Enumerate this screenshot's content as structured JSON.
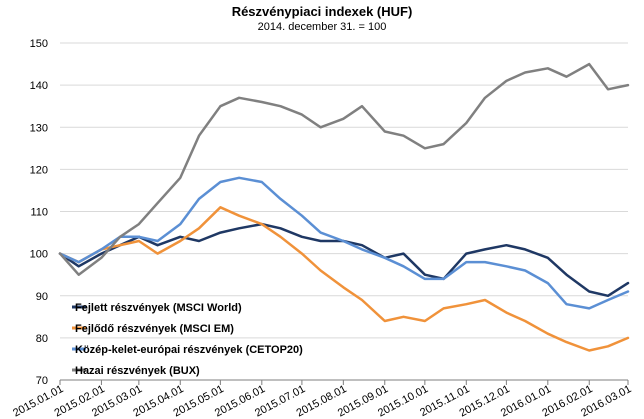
{
  "chart_data": {
    "type": "line",
    "title": "Részvénypiaci indexek (HUF)",
    "subtitle": "2014. december 31. = 100",
    "xlabel": "",
    "ylabel": "",
    "ylim": [
      70,
      150
    ],
    "yticks": [
      70,
      80,
      90,
      100,
      110,
      120,
      130,
      140,
      150
    ],
    "grid": "horizontal",
    "legend_position": "lower-left",
    "x_ticks": [
      "2015.01.01",
      "2015.02.01",
      "2015.03.01",
      "2015.04.01",
      "2015.05.01",
      "2015.06.01",
      "2015.07.01",
      "2015.08.01",
      "2015.09.01",
      "2015.10.01",
      "2015.11.01",
      "2015.12.01",
      "2016.01.01",
      "2016.02.01",
      "2016.03.01"
    ],
    "x": [
      "2015.01.01",
      "2015.01.15",
      "2015.02.01",
      "2015.02.15",
      "2015.03.01",
      "2015.03.15",
      "2015.04.01",
      "2015.04.15",
      "2015.05.01",
      "2015.05.15",
      "2015.06.01",
      "2015.06.15",
      "2015.07.01",
      "2015.07.15",
      "2015.08.01",
      "2015.08.15",
      "2015.09.01",
      "2015.09.15",
      "2015.10.01",
      "2015.10.15",
      "2015.11.01",
      "2015.11.15",
      "2015.12.01",
      "2015.12.15",
      "2016.01.01",
      "2016.01.15",
      "2016.02.01",
      "2016.02.15",
      "2016.03.01"
    ],
    "series": [
      {
        "name": "Fejlett részvények (MSCI World)",
        "color": "#1f3864",
        "values": [
          100,
          97,
          100,
          102,
          104,
          102,
          104,
          103,
          105,
          106,
          107,
          106,
          104,
          103,
          103,
          102,
          99,
          100,
          95,
          94,
          100,
          101,
          102,
          101,
          99,
          95,
          91,
          90,
          93
        ]
      },
      {
        "name": "Fejlődő részvények (MSCI EM)",
        "color": "#f0923a",
        "values": [
          100,
          98,
          101,
          102,
          103,
          100,
          103,
          106,
          111,
          109,
          107,
          104,
          100,
          96,
          92,
          89,
          84,
          85,
          84,
          87,
          88,
          89,
          86,
          84,
          81,
          79,
          77,
          78,
          80
        ]
      },
      {
        "name": "Közép-kelet-európai részvények (CETOP20)",
        "color": "#5b8fd4",
        "values": [
          100,
          98,
          101,
          104,
          104,
          103,
          107,
          113,
          117,
          118,
          117,
          113,
          109,
          105,
          103,
          101,
          99,
          97,
          94,
          94,
          98,
          98,
          97,
          96,
          93,
          88,
          87,
          89,
          91
        ]
      },
      {
        "name": "Hazai részvények (BUX)",
        "color": "#808080",
        "values": [
          100,
          95,
          99,
          104,
          107,
          112,
          118,
          128,
          135,
          137,
          136,
          135,
          133,
          130,
          132,
          135,
          129,
          128,
          125,
          126,
          131,
          137,
          141,
          143,
          144,
          142,
          145,
          139,
          140
        ]
      }
    ]
  }
}
